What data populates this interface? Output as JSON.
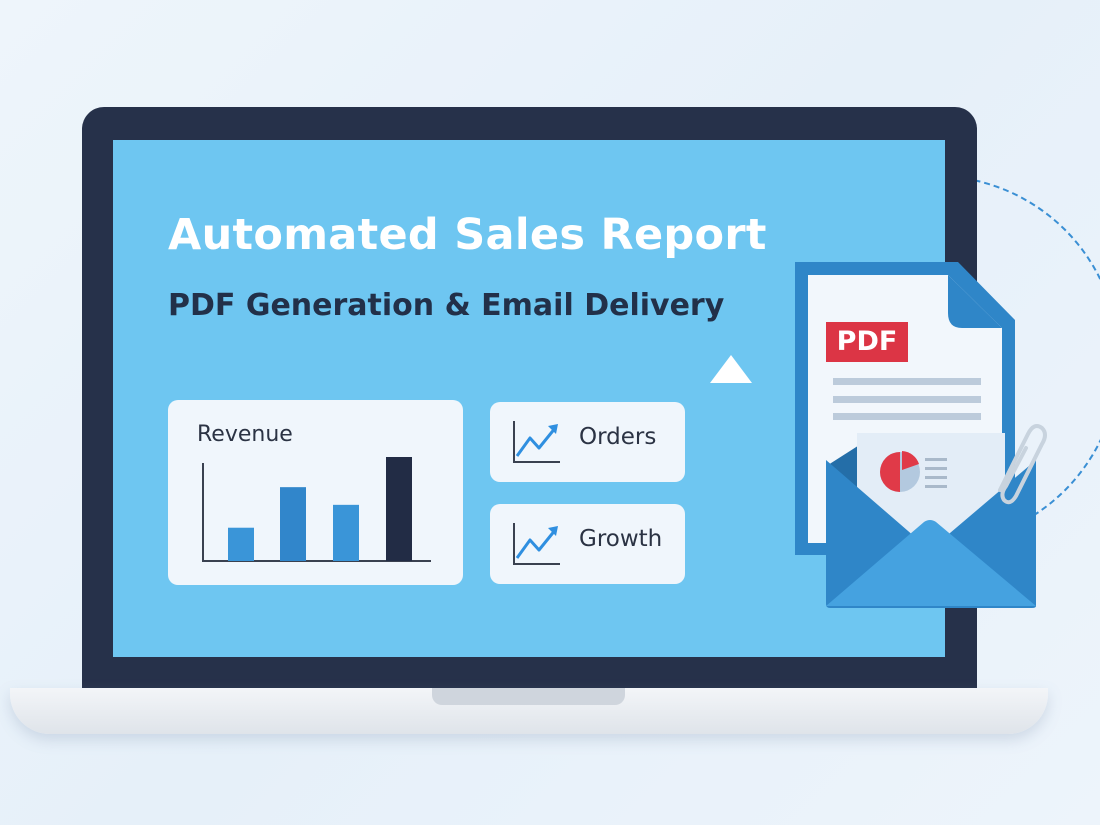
{
  "header": {
    "title": "Automated Sales Report",
    "subtitle": "PDF Generation & Email Delivery"
  },
  "revenue_card": {
    "label": "Revenue",
    "bar_levels": [
      0.32,
      0.71,
      0.54,
      1.0
    ],
    "bar_colors": [
      "#3a95d8",
      "#3186cb",
      "#3a95d8",
      "#222c45"
    ]
  },
  "metric_cards": [
    {
      "label": "Orders",
      "icon": "trend-chart-icon"
    },
    {
      "label": "Growth",
      "icon": "trend-chart-icon"
    }
  ],
  "document": {
    "badge": "PDF",
    "icon": "pdf-document-icon"
  },
  "email": {
    "icon": "envelope-icon",
    "attachment_icon": "paperclip-icon"
  },
  "colors": {
    "screen": "#6ec6f1",
    "bezel": "#26314a",
    "accent": "#2f86c8",
    "pdf_red": "#dc3545"
  }
}
